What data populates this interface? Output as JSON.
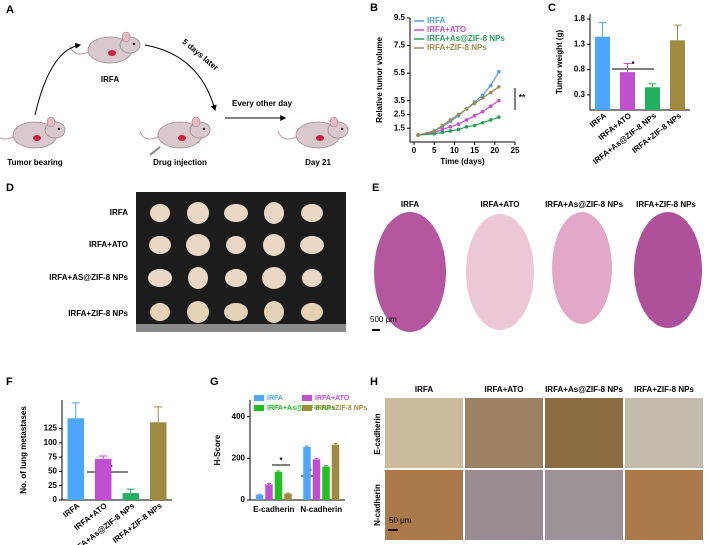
{
  "panel_A": {
    "label": "A",
    "irfa": "IRFA",
    "delay": "5 days later",
    "interval": "Every other day",
    "start": "Tumor bearing",
    "injection": "Drug injection",
    "end": "Day 21"
  },
  "panel_D": {
    "label": "D",
    "rows": [
      "IRFA",
      "IRFA+ATO",
      "IRFA+AS@ZIF-8 NPs",
      "IRFA+ZIF-8 NPs"
    ]
  },
  "panel_E": {
    "label": "E",
    "columns": [
      "IRFA",
      "IRFA+ATO",
      "IRFA+As@ZIF-8 NPs",
      "IRFA+ZIF-8 NPs"
    ],
    "scale_bar": "500 μm"
  },
  "panel_H": {
    "label": "H",
    "columns": [
      "IRFA",
      "IRFA+ATO",
      "IRFA+As@ZIF-8 NPs",
      "IRFA+ZIF-8 NPs"
    ],
    "rows": [
      "E-cadherin",
      "N-cadherin"
    ],
    "scale_bar": "50 μm"
  },
  "chart_data": [
    {
      "type": "line",
      "panel_label": "B",
      "xlabel": "Time (days)",
      "ylabel": "Relative tumor volume",
      "x": [
        1,
        5,
        7,
        9,
        11,
        13,
        15,
        17,
        19,
        21
      ],
      "series": [
        {
          "name": "IRFA",
          "color": "#4f9fe8",
          "values": [
            1,
            1.3,
            1.6,
            2.0,
            2.4,
            2.9,
            3.4,
            3.9,
            4.6,
            5.6
          ]
        },
        {
          "name": "IRFA+ATO",
          "color": "#c24fce",
          "values": [
            1,
            1.2,
            1.4,
            1.6,
            1.8,
            2.1,
            2.4,
            2.7,
            3.1,
            3.5
          ]
        },
        {
          "name": "IRFA+As@ZIF-8 NPs",
          "color": "#25a05a",
          "values": [
            1,
            1.1,
            1.2,
            1.3,
            1.4,
            1.6,
            1.7,
            1.9,
            2.1,
            2.3
          ]
        },
        {
          "name": "IRFA+ZIF-8 NPs",
          "color": "#a08a50",
          "values": [
            1,
            1.3,
            1.7,
            2.1,
            2.5,
            2.9,
            3.3,
            3.7,
            4.1,
            4.5
          ]
        }
      ],
      "xlim": [
        -1,
        25
      ],
      "xticks": [
        0,
        5,
        10,
        15,
        20,
        25
      ],
      "ylim": [
        0.5,
        9.5
      ],
      "yticks": [
        1.5,
        2.5,
        3.5,
        5.5,
        7.5,
        9.5
      ],
      "annotations": [
        "**"
      ]
    },
    {
      "type": "bar",
      "panel_label": "C",
      "ylabel": "Tumor weight (g)",
      "categories": [
        "IRFA",
        "IRFA+ATO",
        "IRFA+As@ZIF-8 NPs",
        "IRFA+ZIF-8 NPs"
      ],
      "values": [
        1.45,
        0.75,
        0.45,
        1.38
      ],
      "errors": [
        0.28,
        0.17,
        0.07,
        0.3
      ],
      "colors": [
        "#4da6ff",
        "#c050d0",
        "#20b060",
        "#a08a40"
      ],
      "ylim": [
        0,
        1.9
      ],
      "yticks": [
        0.3,
        0.8,
        1.3,
        1.8
      ],
      "annotations": [
        "*"
      ]
    },
    {
      "type": "bar",
      "panel_label": "F",
      "ylabel": "No. of lung metastases",
      "categories": [
        "IRFA",
        "IRFA+ATO",
        "IRFA+As@ZIF-8 NPs",
        "IRFA+ZIF-8 NPs"
      ],
      "values": [
        143,
        72,
        12,
        136
      ],
      "errors": [
        27,
        5,
        7,
        27
      ],
      "colors": [
        "#4da6ff",
        "#c050d0",
        "#20b060",
        "#a08a40"
      ],
      "ylim": [
        0,
        175
      ],
      "yticks": [
        0,
        25,
        50,
        75,
        100,
        125
      ],
      "annotations": [
        "***"
      ]
    },
    {
      "type": "grouped_bar",
      "panel_label": "G",
      "ylabel": "H-Score",
      "categories": [
        "E-cadherin",
        "N-cadherin"
      ],
      "series": [
        {
          "name": "IRFA",
          "color": "#4da6ff",
          "values": [
            25,
            255
          ],
          "errors": [
            3,
            5
          ]
        },
        {
          "name": "IRFA+ATO",
          "color": "#c050d0",
          "values": [
            75,
            195
          ],
          "errors": [
            4,
            5
          ]
        },
        {
          "name": "IRFA+As@ZIF-8 NPs",
          "color": "#20c020",
          "values": [
            135,
            160
          ],
          "errors": [
            5,
            5
          ]
        },
        {
          "name": "IRFA+ZIF-8 NPs",
          "color": "#a08a40",
          "values": [
            30,
            265
          ],
          "errors": [
            3,
            6
          ]
        }
      ],
      "ylim": [
        0,
        480
      ],
      "yticks": [
        0,
        200,
        400
      ],
      "annotations": [
        "*",
        "*"
      ]
    }
  ]
}
